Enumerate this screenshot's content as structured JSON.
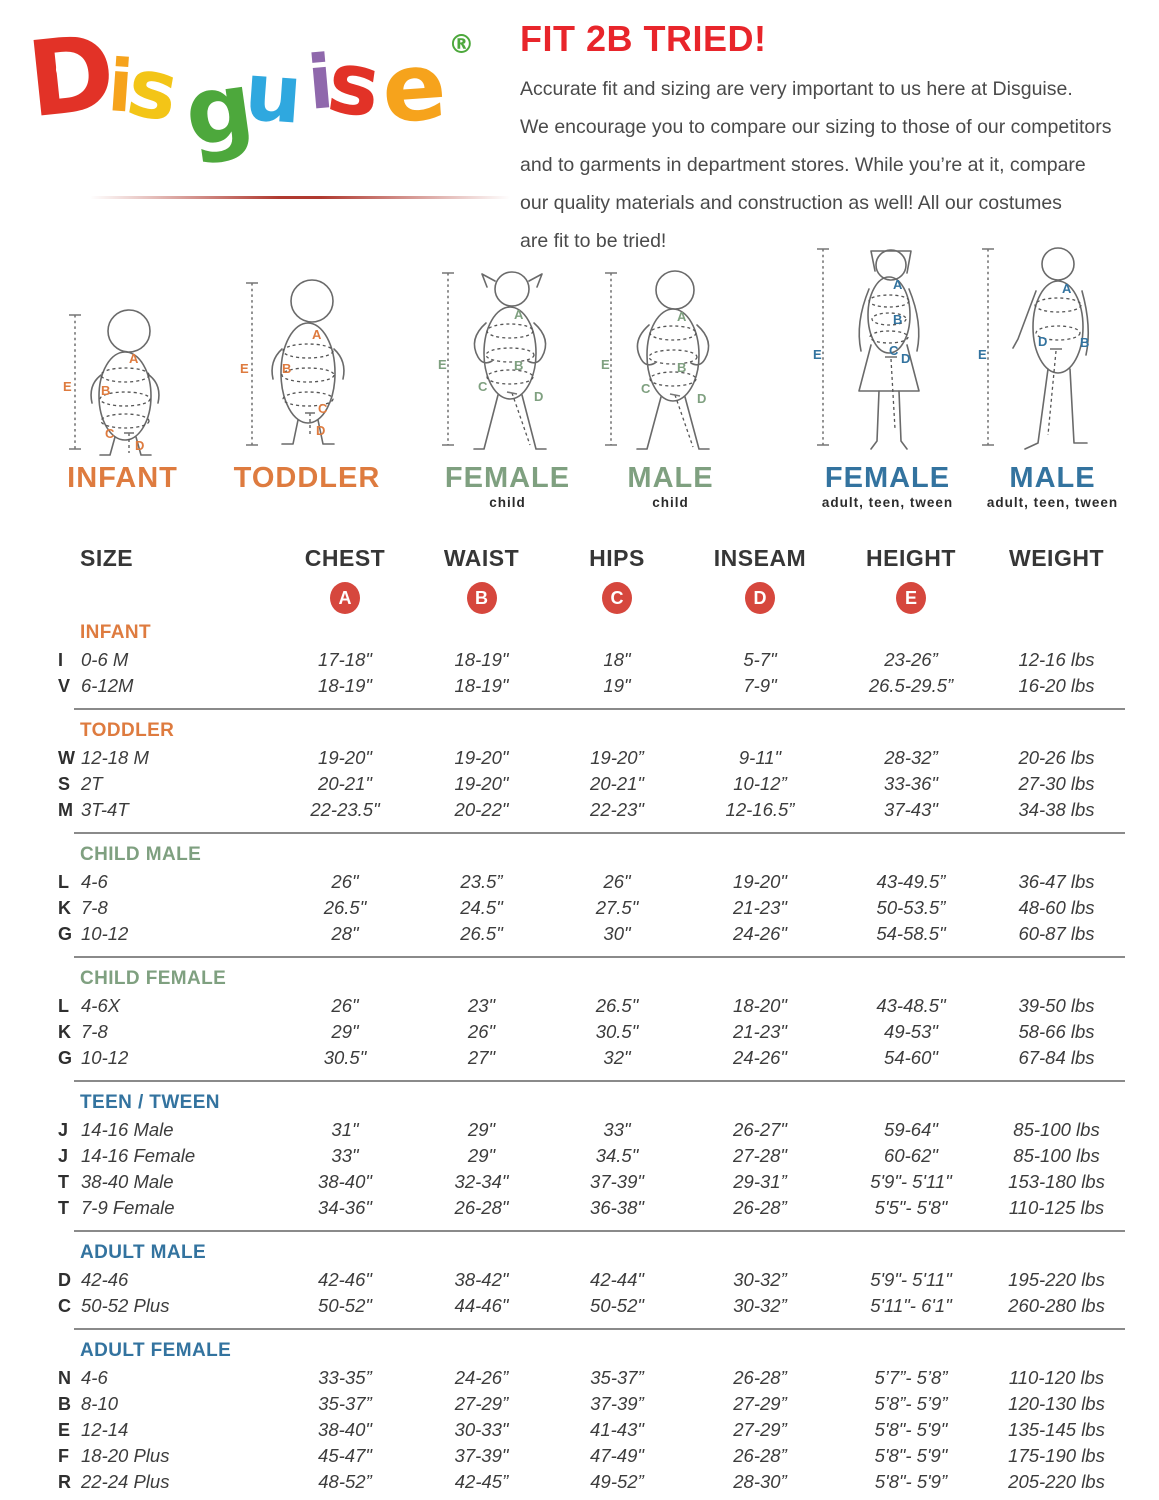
{
  "logo": {
    "word": "Disguise",
    "letters": [
      {
        "ch": "D",
        "color": "#e23227"
      },
      {
        "ch": "i",
        "color": "#f6a31c"
      },
      {
        "ch": "s",
        "color": "#f3c517"
      },
      {
        "ch": "g",
        "color": "#4da83c"
      },
      {
        "ch": "u",
        "color": "#2fa8df"
      },
      {
        "ch": "i",
        "color": "#8f68ac"
      },
      {
        "ch": "s",
        "color": "#e23227"
      },
      {
        "ch": "e",
        "color": "#f6a31c"
      }
    ],
    "registered_mark": "®",
    "registered_color": "#4da83c"
  },
  "intro": {
    "title": "FIT 2B TRIED!",
    "title_color": "#e8252b",
    "lines": [
      "Accurate fit and sizing are very important to us here at Disguise.",
      "We encourage you to compare our sizing to those of our competitors",
      "and to garments in department stores. While you’re at it, compare",
      "our quality materials and construction as well! All our costumes",
      "are fit to be tried!"
    ]
  },
  "figures": [
    {
      "label": "INFANT",
      "sublabel": "",
      "color": "#de7b3f"
    },
    {
      "label": "TODDLER",
      "sublabel": "",
      "color": "#de7b3f"
    },
    {
      "label": "FEMALE",
      "sublabel": "child",
      "color": "#7fa080"
    },
    {
      "label": "MALE",
      "sublabel": "child",
      "color": "#7fa080"
    },
    {
      "label": "FEMALE",
      "sublabel": "adult, teen, tween",
      "color": "#33739f"
    },
    {
      "label": "MALE",
      "sublabel": "adult, teen, tween",
      "color": "#33739f"
    }
  ],
  "table": {
    "columns": [
      "SIZE",
      "CHEST",
      "WAIST",
      "HIPS",
      "INSEAM",
      "HEIGHT",
      "WEIGHT"
    ],
    "badges": [
      "A",
      "B",
      "C",
      "D",
      "E"
    ],
    "badge_color": "#d6473d",
    "sections": [
      {
        "heading": "INFANT",
        "color": "#de7b3f",
        "rows": [
          {
            "letter": "I",
            "size": "0-6 M",
            "values": [
              "17-18\"",
              "18-19\"",
              "18\"",
              "5-7\"",
              "23-26”",
              "12-16 lbs"
            ]
          },
          {
            "letter": "V",
            "size": "6-12M",
            "values": [
              "18-19\"",
              "18-19\"",
              "19\"",
              "7-9\"",
              "26.5-29.5”",
              "16-20 lbs"
            ]
          }
        ]
      },
      {
        "heading": "TODDLER",
        "color": "#de7b3f",
        "rows": [
          {
            "letter": "W",
            "size": "12-18 M",
            "values": [
              "19-20\"",
              "19-20\"",
              "19-20”",
              "9-11\"",
              "28-32”",
              "20-26 lbs"
            ]
          },
          {
            "letter": "S",
            "size": "2T",
            "values": [
              "20-21\"",
              "19-20\"",
              "20-21\"",
              "10-12”",
              "33-36\"",
              "27-30 lbs"
            ]
          },
          {
            "letter": "M",
            "size": "3T-4T",
            "values": [
              "22-23.5\"",
              "20-22\"",
              "22-23\"",
              "12-16.5”",
              "37-43\"",
              "34-38 lbs"
            ]
          }
        ]
      },
      {
        "heading": "CHILD MALE",
        "color": "#7fa080",
        "rows": [
          {
            "letter": "L",
            "size": "4-6",
            "values": [
              "26\"",
              "23.5”",
              "26\"",
              "19-20\"",
              "43-49.5”",
              "36-47 lbs"
            ]
          },
          {
            "letter": "K",
            "size": "7-8",
            "values": [
              "26.5\"",
              "24.5\"",
              "27.5\"",
              "21-23\"",
              "50-53.5”",
              "48-60 lbs"
            ]
          },
          {
            "letter": "G",
            "size": "10-12",
            "values": [
              "28\"",
              "26.5\"",
              "30\"",
              "24-26\"",
              "54-58.5\"",
              "60-87 lbs"
            ]
          }
        ]
      },
      {
        "heading": "CHILD FEMALE",
        "color": "#7fa080",
        "rows": [
          {
            "letter": "L",
            "size": "4-6X",
            "values": [
              "26\"",
              "23\"",
              "26.5\"",
              "18-20\"",
              "43-48.5\"",
              "39-50 lbs"
            ]
          },
          {
            "letter": "K",
            "size": "7-8",
            "values": [
              "29\"",
              "26\"",
              "30.5\"",
              "21-23\"",
              "49-53\"",
              "58-66 lbs"
            ]
          },
          {
            "letter": "G",
            "size": "10-12",
            "values": [
              "30.5\"",
              "27\"",
              "32\"",
              "24-26\"",
              "54-60\"",
              "67-84 lbs"
            ]
          }
        ]
      },
      {
        "heading": "TEEN / TWEEN",
        "color": "#33739f",
        "rows": [
          {
            "letter": "J",
            "size": "14-16 Male",
            "values": [
              "31\"",
              "29\"",
              "33\"",
              "26-27\"",
              "59-64\"",
              "85-100 lbs"
            ]
          },
          {
            "letter": "J",
            "size": "14-16 Female",
            "values": [
              "33\"",
              "29\"",
              "34.5\"",
              "27-28\"",
              "60-62\"",
              "85-100 lbs"
            ]
          },
          {
            "letter": "T",
            "size": "38-40 Male",
            "values": [
              "38-40\"",
              "32-34\"",
              "37-39\"",
              "29-31”",
              "5'9\"- 5'11\"",
              "153-180 lbs"
            ]
          },
          {
            "letter": "T",
            "size": "7-9 Female",
            "values": [
              "34-36\"",
              "26-28\"",
              "36-38\"",
              "26-28”",
              "5'5\"- 5'8\"",
              "110-125 lbs"
            ]
          }
        ]
      },
      {
        "heading": "ADULT MALE",
        "color": "#33739f",
        "rows": [
          {
            "letter": "D",
            "size": "42-46",
            "values": [
              "42-46\"",
              "38-42\"",
              "42-44\"",
              "30-32”",
              "5'9\"- 5'11\"",
              "195-220 lbs"
            ]
          },
          {
            "letter": "C",
            "size": "50-52 Plus",
            "values": [
              "50-52\"",
              "44-46\"",
              "50-52\"",
              "30-32”",
              "5'11\"- 6'1\"",
              "260-280 lbs"
            ]
          }
        ]
      },
      {
        "heading": "ADULT FEMALE",
        "color": "#33739f",
        "rows": [
          {
            "letter": "N",
            "size": "4-6",
            "values": [
              "33-35”",
              "24-26”",
              "35-37”",
              "26-28”",
              "5’7”- 5’8”",
              "110-120 lbs"
            ]
          },
          {
            "letter": "B",
            "size": "8-10",
            "values": [
              "35-37”",
              "27-29”",
              "37-39”",
              "27-29”",
              "5’8”- 5’9”",
              "120-130 lbs"
            ]
          },
          {
            "letter": "E",
            "size": "12-14",
            "values": [
              "38-40\"",
              "30-33\"",
              "41-43\"",
              "27-29”",
              "5'8\"- 5'9\"",
              "135-145 lbs"
            ]
          },
          {
            "letter": "F",
            "size": "18-20 Plus",
            "values": [
              "45-47\"",
              "37-39\"",
              "47-49\"",
              "26-28”",
              "5'8\"- 5'9\"",
              "175-190 lbs"
            ]
          },
          {
            "letter": "R",
            "size": "22-24 Plus",
            "values": [
              "48-52”",
              "42-45”",
              "49-52”",
              "28-30”",
              "5'8\"- 5'9”",
              "205-220 lbs"
            ]
          }
        ]
      }
    ]
  }
}
